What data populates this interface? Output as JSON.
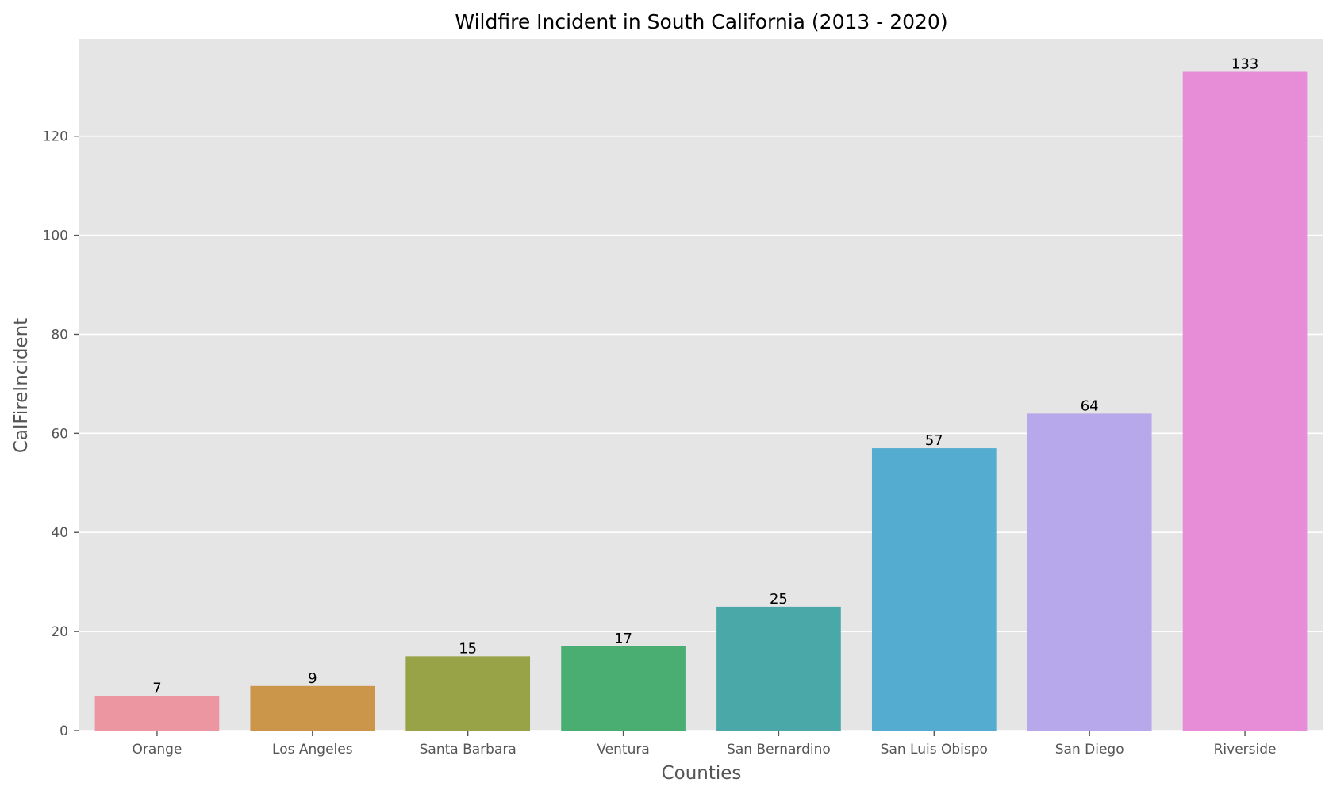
{
  "chart_data": {
    "type": "bar",
    "title": "Wildfire Incident in South California (2013 - 2020)",
    "xlabel": "Counties",
    "ylabel": "CalFireIncident",
    "categories": [
      "Orange",
      "Los Angeles",
      "Santa Barbara",
      "Ventura",
      "San Bernardino",
      "San Luis Obispo",
      "San Diego",
      "Riverside"
    ],
    "values": [
      7,
      9,
      15,
      17,
      25,
      57,
      64,
      133
    ],
    "data_labels": [
      "7",
      "9",
      "15",
      "17",
      "25",
      "57",
      "64",
      "133"
    ],
    "colors": [
      "#ec96a1",
      "#cb954a",
      "#98a348",
      "#4aae73",
      "#4aa9a8",
      "#54acd0",
      "#b6a8eb",
      "#e78dd8"
    ],
    "ylim": [
      0,
      139.65
    ],
    "yticks": [
      0,
      20,
      40,
      60,
      80,
      100,
      120
    ],
    "ytick_labels": [
      "0",
      "20",
      "40",
      "60",
      "80",
      "100",
      "120"
    ],
    "grid": true,
    "style": {
      "plot_background": "#e5e5e5",
      "grid_color": "#ffffff",
      "tick_color": "#555555",
      "label_color": "#555555",
      "title_color": "#000000"
    }
  }
}
